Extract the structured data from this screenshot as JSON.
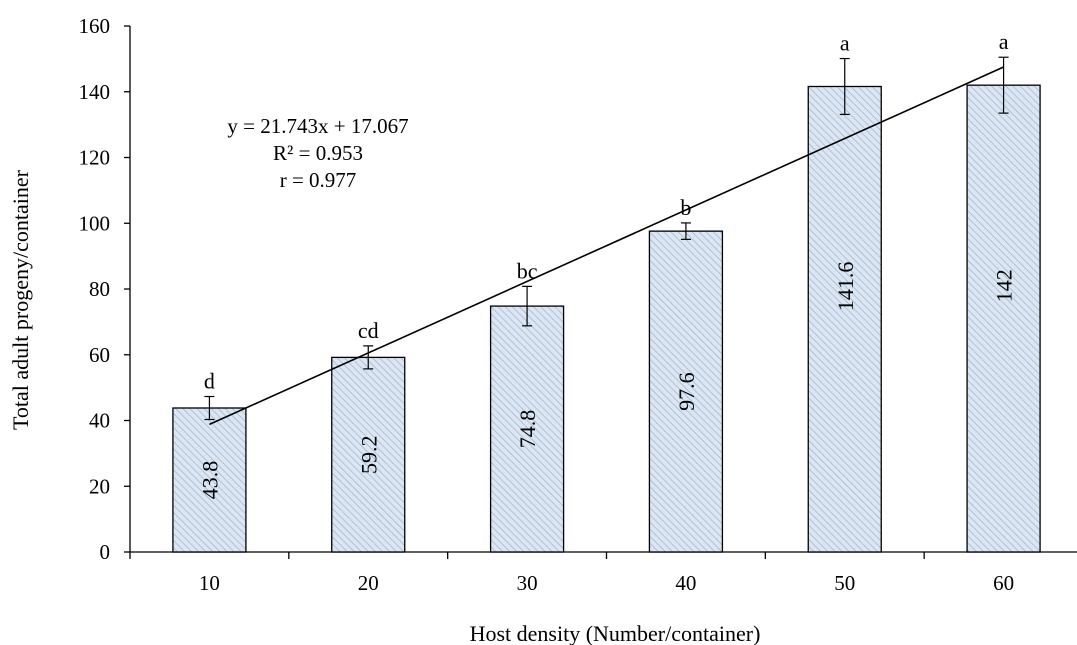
{
  "chart_data": {
    "type": "bar",
    "title": "",
    "xlabel": "Host density (Number/container)",
    "ylabel": "Total adult progeny/container",
    "categories": [
      "10",
      "20",
      "30",
      "40",
      "50",
      "60"
    ],
    "values": [
      43.8,
      59.2,
      74.8,
      97.6,
      141.6,
      142
    ],
    "value_labels": [
      "43.8",
      "59.2",
      "74.8",
      "97.6",
      "141.6",
      "142"
    ],
    "error_bars": [
      3.5,
      3.5,
      6,
      2.5,
      8.5,
      8.5
    ],
    "significance_letters": [
      "d",
      "cd",
      "bc",
      "b",
      "a",
      "a"
    ],
    "ylim": [
      0,
      160
    ],
    "yticks": [
      "0",
      "20",
      "40",
      "60",
      "80",
      "100",
      "120",
      "140",
      "160"
    ],
    "grid": false,
    "legend": "none",
    "trendline": {
      "type": "linear",
      "slope": 21.743,
      "intercept": 17.067,
      "equation": "y = 21.743x + 17.067",
      "r_squared": "R² = 0.953",
      "r": "r = 0.977"
    },
    "bar_fill_color": "#dce6f2",
    "bar_hatch_color": "#9bb3cf",
    "bar_stroke_color": "#000000"
  }
}
